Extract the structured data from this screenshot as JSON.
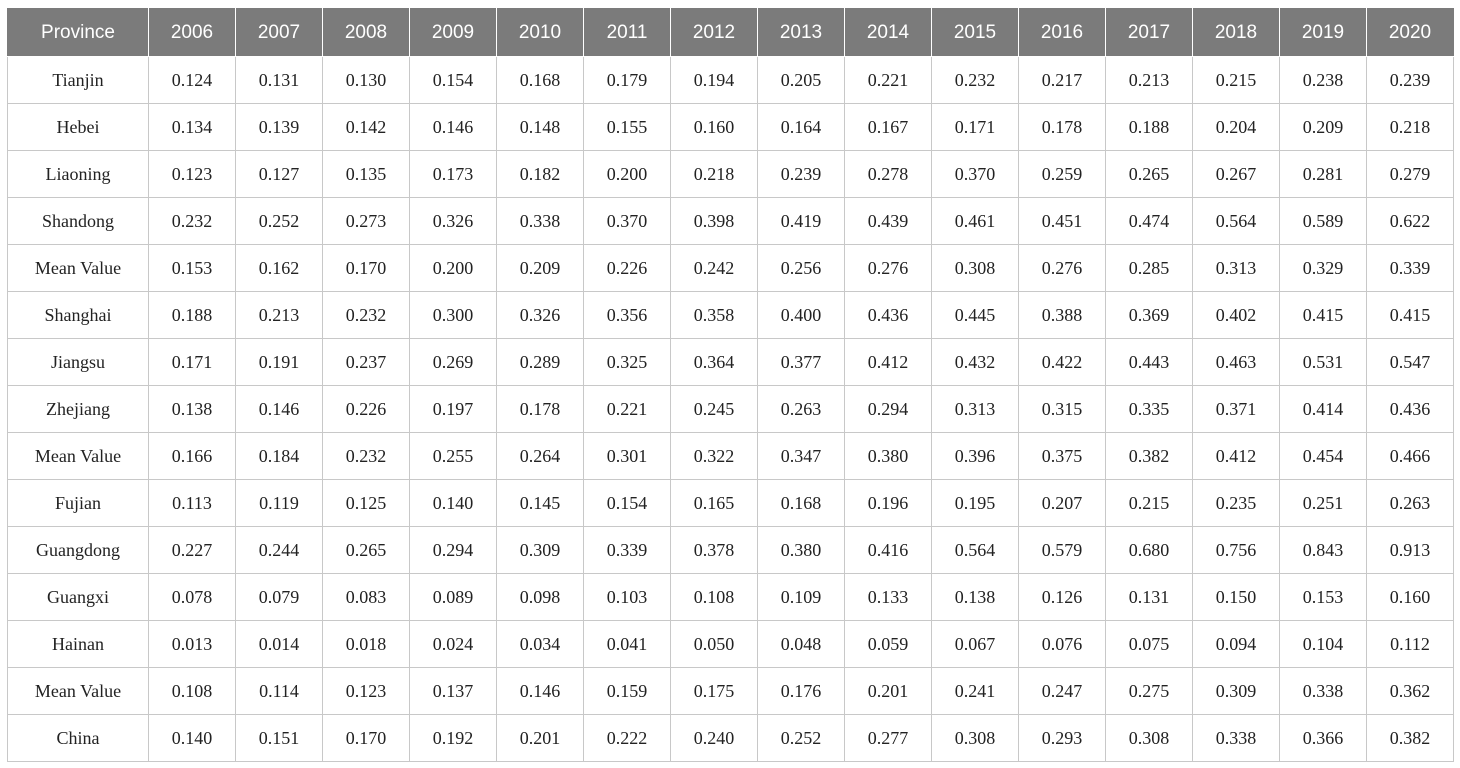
{
  "table": {
    "header": [
      "Province",
      "2006",
      "2007",
      "2008",
      "2009",
      "2010",
      "2011",
      "2012",
      "2013",
      "2014",
      "2015",
      "2016",
      "2017",
      "2018",
      "2019",
      "2020"
    ],
    "rows": [
      [
        "Tianjin",
        "0.124",
        "0.131",
        "0.130",
        "0.154",
        "0.168",
        "0.179",
        "0.194",
        "0.205",
        "0.221",
        "0.232",
        "0.217",
        "0.213",
        "0.215",
        "0.238",
        "0.239"
      ],
      [
        "Hebei",
        "0.134",
        "0.139",
        "0.142",
        "0.146",
        "0.148",
        "0.155",
        "0.160",
        "0.164",
        "0.167",
        "0.171",
        "0.178",
        "0.188",
        "0.204",
        "0.209",
        "0.218"
      ],
      [
        "Liaoning",
        "0.123",
        "0.127",
        "0.135",
        "0.173",
        "0.182",
        "0.200",
        "0.218",
        "0.239",
        "0.278",
        "0.370",
        "0.259",
        "0.265",
        "0.267",
        "0.281",
        "0.279"
      ],
      [
        "Shandong",
        "0.232",
        "0.252",
        "0.273",
        "0.326",
        "0.338",
        "0.370",
        "0.398",
        "0.419",
        "0.439",
        "0.461",
        "0.451",
        "0.474",
        "0.564",
        "0.589",
        "0.622"
      ],
      [
        "Mean Value",
        "0.153",
        "0.162",
        "0.170",
        "0.200",
        "0.209",
        "0.226",
        "0.242",
        "0.256",
        "0.276",
        "0.308",
        "0.276",
        "0.285",
        "0.313",
        "0.329",
        "0.339"
      ],
      [
        "Shanghai",
        "0.188",
        "0.213",
        "0.232",
        "0.300",
        "0.326",
        "0.356",
        "0.358",
        "0.400",
        "0.436",
        "0.445",
        "0.388",
        "0.369",
        "0.402",
        "0.415",
        "0.415"
      ],
      [
        "Jiangsu",
        "0.171",
        "0.191",
        "0.237",
        "0.269",
        "0.289",
        "0.325",
        "0.364",
        "0.377",
        "0.412",
        "0.432",
        "0.422",
        "0.443",
        "0.463",
        "0.531",
        "0.547"
      ],
      [
        "Zhejiang",
        "0.138",
        "0.146",
        "0.226",
        "0.197",
        "0.178",
        "0.221",
        "0.245",
        "0.263",
        "0.294",
        "0.313",
        "0.315",
        "0.335",
        "0.371",
        "0.414",
        "0.436"
      ],
      [
        "Mean Value",
        "0.166",
        "0.184",
        "0.232",
        "0.255",
        "0.264",
        "0.301",
        "0.322",
        "0.347",
        "0.380",
        "0.396",
        "0.375",
        "0.382",
        "0.412",
        "0.454",
        "0.466"
      ],
      [
        "Fujian",
        "0.113",
        "0.119",
        "0.125",
        "0.140",
        "0.145",
        "0.154",
        "0.165",
        "0.168",
        "0.196",
        "0.195",
        "0.207",
        "0.215",
        "0.235",
        "0.251",
        "0.263"
      ],
      [
        "Guangdong",
        "0.227",
        "0.244",
        "0.265",
        "0.294",
        "0.309",
        "0.339",
        "0.378",
        "0.380",
        "0.416",
        "0.564",
        "0.579",
        "0.680",
        "0.756",
        "0.843",
        "0.913"
      ],
      [
        "Guangxi",
        "0.078",
        "0.079",
        "0.083",
        "0.089",
        "0.098",
        "0.103",
        "0.108",
        "0.109",
        "0.133",
        "0.138",
        "0.126",
        "0.131",
        "0.150",
        "0.153",
        "0.160"
      ],
      [
        "Hainan",
        "0.013",
        "0.014",
        "0.018",
        "0.024",
        "0.034",
        "0.041",
        "0.050",
        "0.048",
        "0.059",
        "0.067",
        "0.076",
        "0.075",
        "0.094",
        "0.104",
        "0.112"
      ],
      [
        "Mean Value",
        "0.108",
        "0.114",
        "0.123",
        "0.137",
        "0.146",
        "0.159",
        "0.175",
        "0.176",
        "0.201",
        "0.241",
        "0.247",
        "0.275",
        "0.309",
        "0.338",
        "0.362"
      ],
      [
        "China",
        "0.140",
        "0.151",
        "0.170",
        "0.192",
        "0.201",
        "0.222",
        "0.240",
        "0.252",
        "0.277",
        "0.308",
        "0.293",
        "0.308",
        "0.338",
        "0.366",
        "0.382"
      ]
    ]
  },
  "colors": {
    "header_background": "#7b7b7b",
    "header_text": "#ffffff",
    "grid_line": "#c8c8c8",
    "cell_text": "#222222"
  }
}
